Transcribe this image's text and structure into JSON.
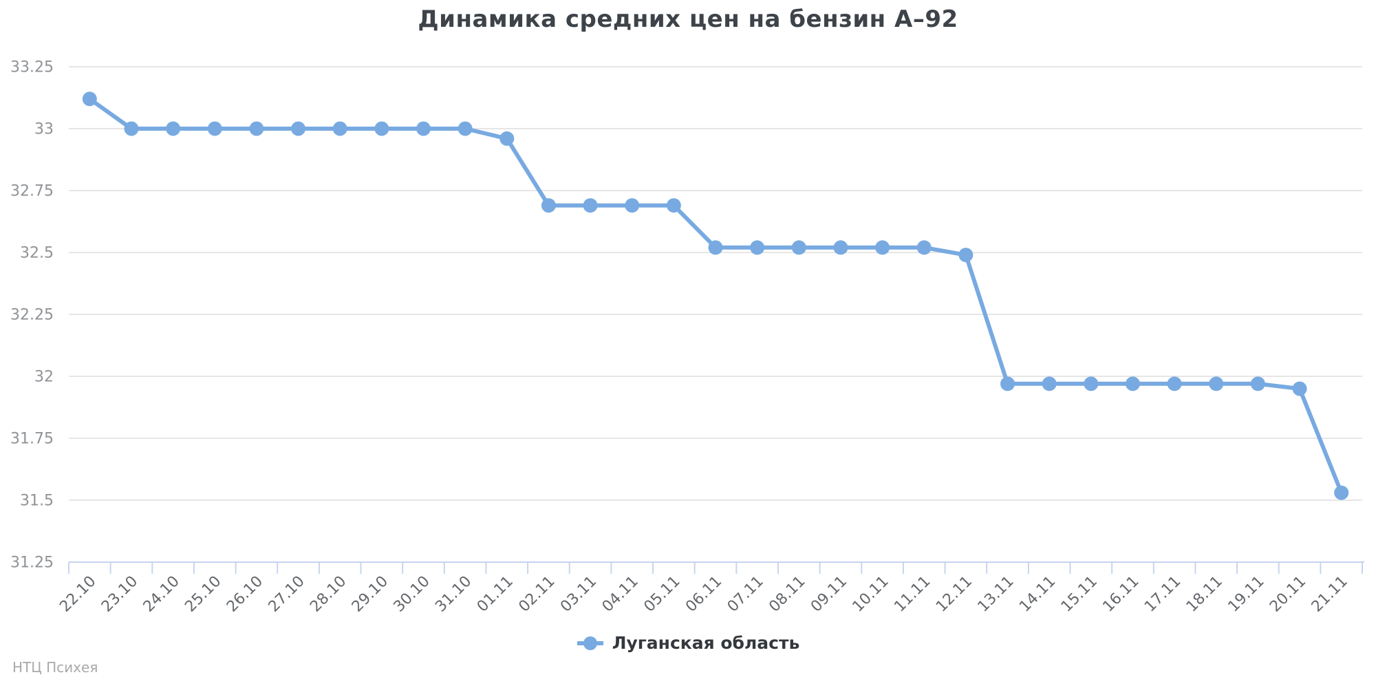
{
  "chart_data": {
    "type": "line",
    "title": "Динамика средних цен на бензин А–92",
    "categories": [
      "22.10",
      "23.10",
      "24.10",
      "25.10",
      "26.10",
      "27.10",
      "28.10",
      "29.10",
      "30.10",
      "31.10",
      "01.11",
      "02.11",
      "03.11",
      "04.11",
      "05.11",
      "06.11",
      "07.11",
      "08.11",
      "09.11",
      "10.11",
      "11.11",
      "12.11",
      "13.11",
      "14.11",
      "15.11",
      "16.11",
      "17.11",
      "18.11",
      "19.11",
      "20.11",
      "21.11"
    ],
    "series": [
      {
        "name": "Луганская область",
        "values": [
          33.12,
          33.0,
          33.0,
          33.0,
          33.0,
          33.0,
          33.0,
          33.0,
          33.0,
          33.0,
          32.96,
          32.69,
          32.69,
          32.69,
          32.69,
          32.52,
          32.52,
          32.52,
          32.52,
          32.52,
          32.52,
          32.49,
          31.97,
          31.97,
          31.97,
          31.97,
          31.97,
          31.97,
          31.97,
          31.95,
          31.53
        ]
      }
    ],
    "ylim": [
      31.25,
      33.25
    ],
    "yticks": [
      33.25,
      33,
      32.75,
      32.5,
      32.25,
      32,
      31.75,
      31.5,
      31.25
    ],
    "xlabel": "",
    "ylabel": "",
    "grid": true,
    "legend_position": "bottom",
    "colors": {
      "line": "#78aae1",
      "bullet": "#78aae1",
      "axis": "#c7d4ef",
      "grid": "#e6e6e6",
      "y_labels": "#8f9296",
      "x_labels": "#63666a",
      "title": "#3d4349",
      "legend_text": "#34383d",
      "watermark": "#a9a9a9"
    }
  },
  "watermark": "НТЦ Психея"
}
